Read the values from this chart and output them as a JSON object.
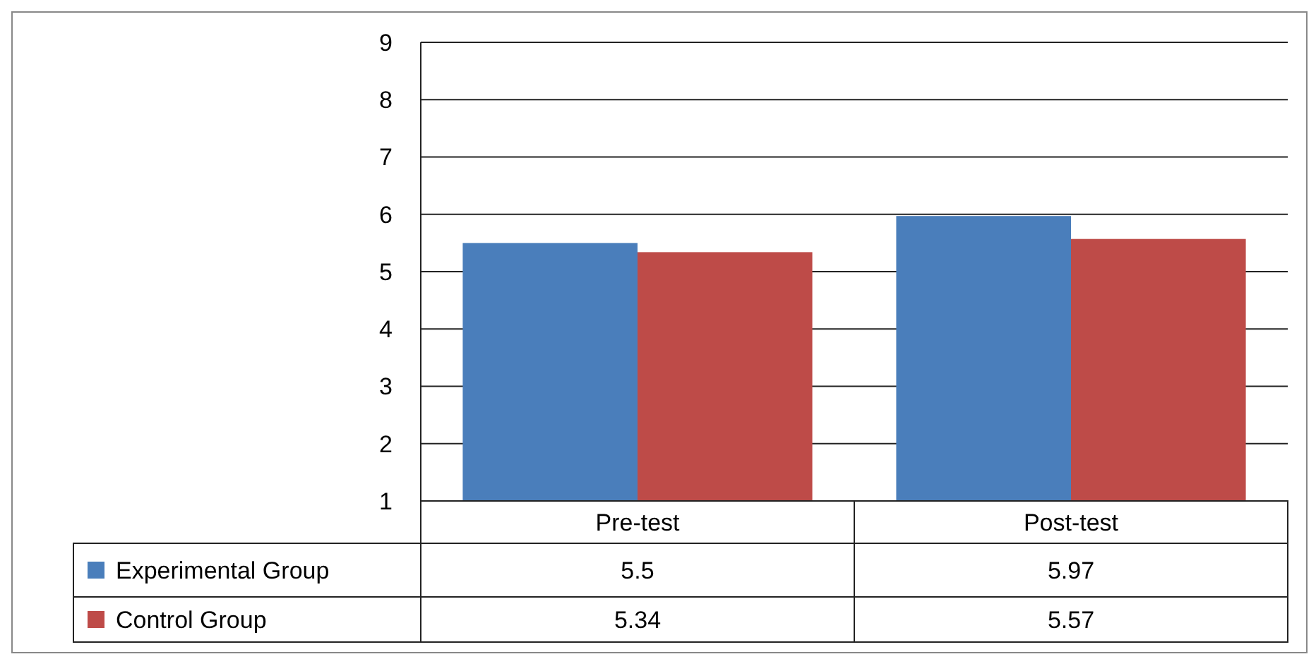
{
  "chart_data": {
    "type": "bar",
    "categories": [
      "Pre-test",
      "Post-test"
    ],
    "series": [
      {
        "name": "Experimental Group",
        "color": "#4a7ebb",
        "values": [
          5.5,
          5.97
        ]
      },
      {
        "name": "Control Group",
        "color": "#be4b48",
        "values": [
          5.34,
          5.57
        ]
      }
    ],
    "ylim": [
      1,
      9
    ],
    "yticks": [
      1,
      2,
      3,
      4,
      5,
      6,
      7,
      8,
      9
    ],
    "grid": "y",
    "legend": "bottom",
    "data_labels": true
  }
}
